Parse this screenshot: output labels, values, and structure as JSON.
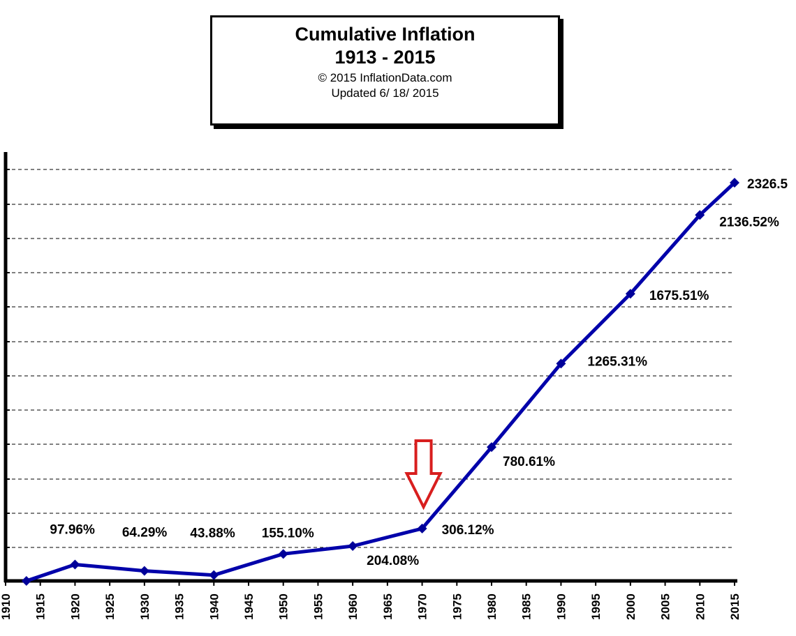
{
  "title_box": {
    "title_line1": "Cumulative Inflation",
    "title_line2": "1913 - 2015",
    "copyright": "© 2015 InflationData.com",
    "updated": "Updated   6/ 18/ 2015"
  },
  "colors": {
    "series_line": "#0000aa",
    "marker": "#000099",
    "arrow": "#d81e1e",
    "axis": "#000000"
  },
  "chart_data": {
    "type": "line",
    "title": "Cumulative Inflation",
    "subtitle": "1913 - 2015",
    "xlabel": "",
    "ylabel": "",
    "xlim": [
      1910,
      2015
    ],
    "x_tick_labels": [
      "1910",
      "1915",
      "1920",
      "1925",
      "1930",
      "1935",
      "1940",
      "1945",
      "1950",
      "1955",
      "1960",
      "1965",
      "1970",
      "1975",
      "1980",
      "1985",
      "1990",
      "1995",
      "2000",
      "2005",
      "2010",
      "2015"
    ],
    "y_scale_note": "unlabeled y-axis with dashed horizontal gridlines",
    "grid": true,
    "legend": "none",
    "series": [
      {
        "points": [
          {
            "x": 1913,
            "y": 0,
            "label": ""
          },
          {
            "x": 1920,
            "y": 3.1,
            "label": "97.96%"
          },
          {
            "x": 1930,
            "y": 1.9,
            "label": "64.29%"
          },
          {
            "x": 1940,
            "y": 1.1,
            "label": "43.88%"
          },
          {
            "x": 1950,
            "y": 5.1,
            "label": "155.10%"
          },
          {
            "x": 1960,
            "y": 6.6,
            "label": "204.08%"
          },
          {
            "x": 1970,
            "y": 9.9,
            "label": "306.12%"
          },
          {
            "x": 1980,
            "y": 25.3,
            "label": "780.61%"
          },
          {
            "x": 1990,
            "y": 41.1,
            "label": "1265.31%"
          },
          {
            "x": 2000,
            "y": 54.3,
            "label": "1675.51%"
          },
          {
            "x": 2010,
            "y": 69.2,
            "label": "2136.52%"
          },
          {
            "x": 2015,
            "y": 75.3,
            "label": "2326.5"
          }
        ]
      }
    ],
    "annotation": {
      "type": "down-arrow",
      "x": 1970
    }
  }
}
